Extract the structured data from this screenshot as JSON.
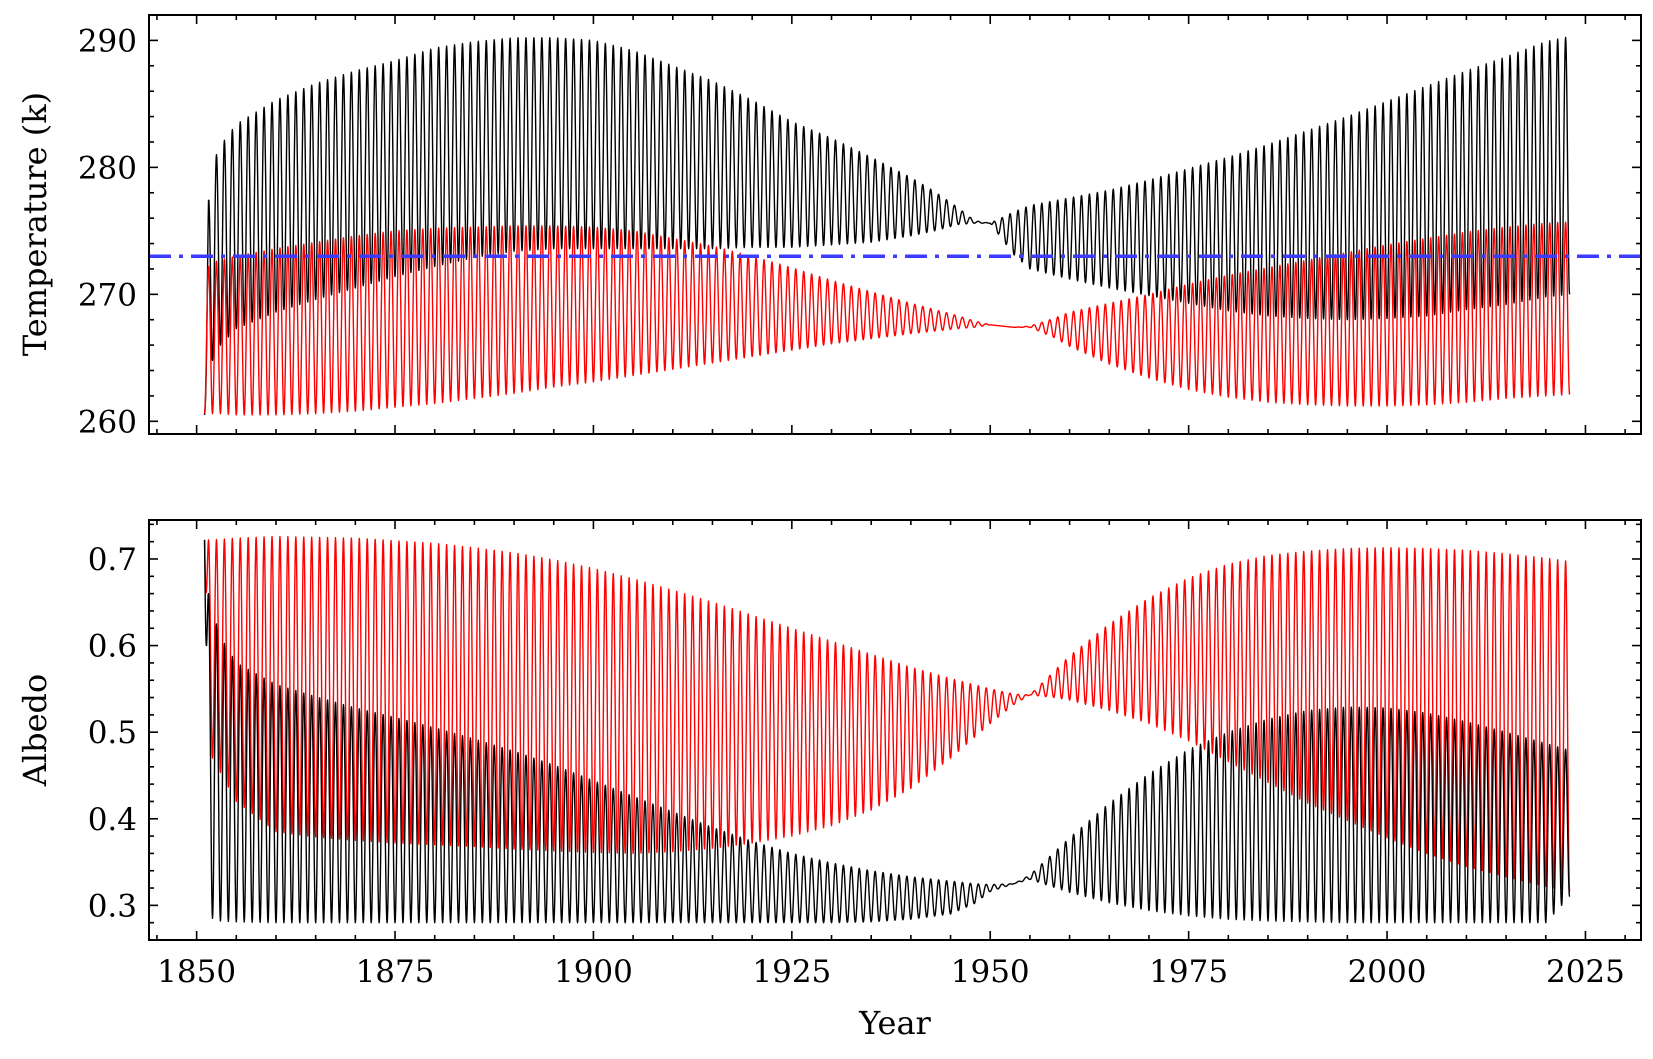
{
  "chart_data": [
    {
      "type": "line",
      "title": "",
      "xlabel": "",
      "ylabel": "Temperature (k)",
      "xlim": [
        1844,
        2032
      ],
      "ylim": [
        259,
        292
      ],
      "xticks": [
        1850,
        1875,
        1900,
        1925,
        1950,
        1975,
        2000,
        2025
      ],
      "yticks": [
        260,
        270,
        280,
        290
      ],
      "ytick_labels": [
        "260",
        "270",
        "280",
        "290"
      ],
      "show_xtick_labels": false,
      "grid": false,
      "legend": "none",
      "reference_line": {
        "y": 273,
        "style": "dash-dot",
        "color": "#3b3bff"
      },
      "x_range": [
        1851,
        2023
      ],
      "oscillation_period_years": 1,
      "series": [
        {
          "color": "#000000",
          "envelope": {
            "years": [
              1851.0,
              1851.5,
              1852,
              1853,
              1855,
              1860,
              1865,
              1870,
              1875,
              1880,
              1885,
              1890,
              1895,
              1900,
              1905,
              1910,
              1915,
              1920,
              1925,
              1930,
              1935,
              1940,
              1943,
              1946,
              1948,
              1950,
              1953,
              1955,
              1960,
              1965,
              1970,
              1975,
              1980,
              1985,
              1990,
              1995,
              2000,
              2005,
              2010,
              2015,
              2020,
              2023
            ],
            "upper": [
              260.5,
              277.4,
              280.3,
              281.7,
              283.4,
              285.3,
              286.6,
              287.6,
              288.4,
              289.4,
              289.9,
              290.2,
              290.2,
              290.0,
              289.2,
              288.0,
              286.8,
              285.3,
              283.6,
              282.3,
              280.8,
              279.2,
              278.1,
              276.8,
              275.8,
              275.6,
              276.5,
              277.0,
              277.6,
              278.2,
              279.0,
              279.9,
              280.8,
              281.8,
              282.9,
              284.0,
              285.2,
              286.4,
              287.6,
              288.7,
              289.9,
              290.3
            ],
            "lower": [
              260.5,
              263.5,
              264.8,
              266.0,
              267.3,
              268.6,
              269.6,
              270.5,
              271.4,
              272.2,
              272.9,
              273.4,
              273.6,
              273.6,
              273.6,
              273.6,
              273.6,
              273.7,
              273.7,
              273.9,
              274.1,
              274.6,
              275.0,
              275.5,
              275.6,
              275.6,
              273.1,
              272.0,
              271.2,
              270.5,
              269.9,
              269.3,
              268.7,
              268.3,
              268.1,
              268.0,
              268.1,
              268.3,
              268.8,
              269.2,
              269.8,
              270.0
            ]
          }
        },
        {
          "color": "#ff0000",
          "envelope": {
            "years": [
              1851.0,
              1851.5,
              1852,
              1853,
              1855,
              1860,
              1865,
              1870,
              1875,
              1880,
              1885,
              1890,
              1895,
              1900,
              1905,
              1910,
              1915,
              1920,
              1925,
              1930,
              1935,
              1940,
              1943,
              1946,
              1948,
              1950,
              1953,
              1955,
              1958,
              1960,
              1965,
              1970,
              1975,
              1980,
              1985,
              1990,
              1995,
              2000,
              2005,
              2010,
              2015,
              2020,
              2023
            ],
            "upper": [
              272.0,
              272.2,
              272.5,
              272.7,
              273.0,
              273.6,
              274.1,
              274.6,
              275.0,
              275.2,
              275.3,
              275.4,
              275.4,
              275.3,
              275.0,
              274.4,
              273.8,
              273.0,
              272.1,
              271.1,
              270.2,
              269.3,
              268.8,
              268.3,
              267.9,
              267.6,
              267.4,
              267.5,
              268.1,
              268.6,
              269.3,
              270.0,
              270.8,
              271.5,
              272.1,
              272.7,
              273.3,
              273.9,
              274.4,
              274.9,
              275.3,
              275.6,
              275.7
            ],
            "lower": [
              260.6,
              260.6,
              260.6,
              260.6,
              260.5,
              260.5,
              260.6,
              260.8,
              261.1,
              261.4,
              261.8,
              262.2,
              262.7,
              263.1,
              263.6,
              264.1,
              264.6,
              265.1,
              265.6,
              266.1,
              266.5,
              266.9,
              267.1,
              267.3,
              267.4,
              267.6,
              267.4,
              267.4,
              266.6,
              265.9,
              264.5,
              263.4,
              262.5,
              261.9,
              261.5,
              261.3,
              261.2,
              261.2,
              261.3,
              261.5,
              261.8,
              262.0,
              262.1
            ]
          }
        }
      ]
    },
    {
      "type": "line",
      "title": "",
      "xlabel": "Year",
      "ylabel": "Albedo",
      "xlim": [
        1844,
        2032
      ],
      "ylim": [
        0.26,
        0.745
      ],
      "xticks": [
        1850,
        1875,
        1900,
        1925,
        1950,
        1975,
        2000,
        2025
      ],
      "xtick_labels": [
        "1850",
        "1875",
        "1900",
        "1925",
        "1950",
        "1975",
        "2000",
        "2025"
      ],
      "yticks": [
        0.3,
        0.4,
        0.5,
        0.6,
        0.7
      ],
      "ytick_labels": [
        "0.3",
        "0.4",
        "0.5",
        "0.6",
        "0.7"
      ],
      "grid": false,
      "legend": "none",
      "x_range": [
        1851,
        2023
      ],
      "oscillation_period_years": 1,
      "series": [
        {
          "color": "#ff0000",
          "envelope": {
            "years": [
              1851.0,
              1851.5,
              1852,
              1855,
              1860,
              1865,
              1870,
              1875,
              1880,
              1885,
              1890,
              1895,
              1900,
              1905,
              1910,
              1915,
              1920,
              1925,
              1930,
              1935,
              1940,
              1945,
              1950,
              1953,
              1955,
              1958,
              1960,
              1965,
              1970,
              1975,
              1980,
              1985,
              1990,
              1995,
              2000,
              2005,
              2010,
              2015,
              2020,
              2023
            ],
            "upper": [
              0.722,
              0.722,
              0.722,
              0.724,
              0.726,
              0.725,
              0.724,
              0.721,
              0.718,
              0.713,
              0.707,
              0.699,
              0.689,
              0.677,
              0.664,
              0.65,
              0.635,
              0.62,
              0.605,
              0.59,
              0.575,
              0.562,
              0.55,
              0.544,
              0.543,
              0.57,
              0.588,
              0.625,
              0.655,
              0.678,
              0.694,
              0.704,
              0.709,
              0.712,
              0.713,
              0.712,
              0.71,
              0.706,
              0.701,
              0.697
            ],
            "lower": [
              0.722,
              0.49,
              0.47,
              0.42,
              0.385,
              0.379,
              0.375,
              0.372,
              0.37,
              0.368,
              0.365,
              0.363,
              0.361,
              0.36,
              0.362,
              0.366,
              0.372,
              0.38,
              0.392,
              0.41,
              0.435,
              0.47,
              0.51,
              0.532,
              0.543,
              0.54,
              0.537,
              0.525,
              0.51,
              0.49,
              0.466,
              0.442,
              0.418,
              0.398,
              0.378,
              0.36,
              0.345,
              0.333,
              0.322,
              0.316
            ]
          }
        },
        {
          "color": "#000000",
          "envelope": {
            "years": [
              1851.0,
              1851.5,
              1852,
              1853,
              1855,
              1860,
              1865,
              1870,
              1875,
              1880,
              1885,
              1890,
              1895,
              1900,
              1905,
              1910,
              1915,
              1920,
              1925,
              1930,
              1935,
              1940,
              1945,
              1948,
              1950,
              1953,
              1955,
              1960,
              1965,
              1970,
              1975,
              1980,
              1985,
              1990,
              1995,
              2000,
              2005,
              2010,
              2015,
              2020,
              2023
            ],
            "upper": [
              0.722,
              0.66,
              0.64,
              0.61,
              0.58,
              0.555,
              0.541,
              0.528,
              0.517,
              0.505,
              0.492,
              0.478,
              0.462,
              0.444,
              0.426,
              0.408,
              0.39,
              0.374,
              0.36,
              0.349,
              0.34,
              0.333,
              0.328,
              0.325,
              0.324,
              0.325,
              0.335,
              0.378,
              0.418,
              0.452,
              0.48,
              0.5,
              0.515,
              0.525,
              0.529,
              0.528,
              0.522,
              0.512,
              0.5,
              0.487,
              0.479
            ],
            "lower": [
              0.722,
              0.296,
              0.285,
              0.282,
              0.281,
              0.28,
              0.28,
              0.28,
              0.28,
              0.28,
              0.28,
              0.28,
              0.28,
              0.28,
              0.28,
              0.28,
              0.28,
              0.28,
              0.28,
              0.28,
              0.281,
              0.284,
              0.29,
              0.302,
              0.316,
              0.325,
              0.33,
              0.315,
              0.303,
              0.294,
              0.288,
              0.284,
              0.282,
              0.281,
              0.28,
              0.28,
              0.28,
              0.28,
              0.28,
              0.28,
              0.31
            ]
          }
        }
      ]
    }
  ]
}
